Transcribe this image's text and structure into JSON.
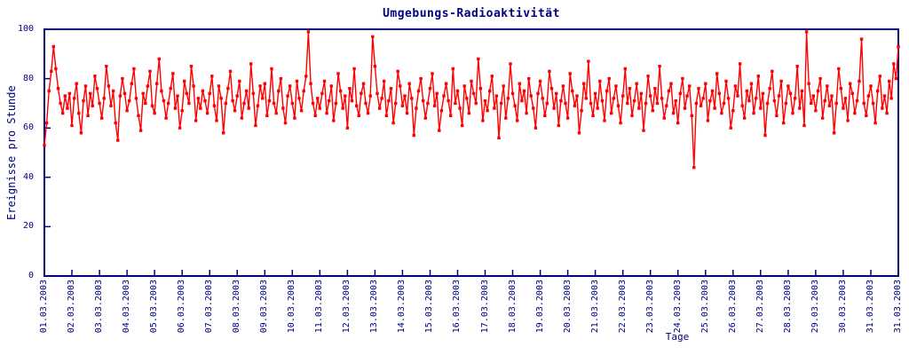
{
  "colors": {
    "series": "#ff0000",
    "axis": "#000080",
    "background": "#ffffff"
  },
  "chart_data": {
    "type": "line",
    "style": "linespoints with small filled square markers, noisy time series",
    "title": "Umgebungs-Radioaktivität",
    "xlabel": "Tage",
    "ylabel": "Ereignisse pro Stunde",
    "ylim": [
      0,
      100
    ],
    "yticks": [
      0,
      20,
      40,
      60,
      80,
      100
    ],
    "x_range": [
      "01.03.2003",
      "31.03.2003"
    ],
    "x_tick_labels": [
      "01.03.2003",
      "02.03.2003",
      "03.03.2003",
      "04.03.2003",
      "05.03.2003",
      "06.03.2003",
      "07.03.2003",
      "08.03.2003",
      "09.03.2003",
      "10.03.2003",
      "11.03.2003",
      "12.03.2003",
      "13.03.2003",
      "14.03.2003",
      "15.03.2003",
      "16.03.2003",
      "17.03.2003",
      "18.03.2003",
      "19.03.2003",
      "20.03.2003",
      "21.03.2003",
      "22.03.2003",
      "23.03.2003",
      "24.03.2003",
      "25.03.2003",
      "26.03.2003",
      "27.03.2003",
      "28.03.2003",
      "29.03.2003",
      "30.03.2003",
      "31.03.2003",
      "31.03.2003"
    ],
    "grid": false,
    "legend": "none",
    "values": [
      53,
      62,
      75,
      83,
      93,
      84,
      76,
      70,
      66,
      73,
      68,
      74,
      61,
      72,
      78,
      66,
      58,
      71,
      77,
      65,
      74,
      69,
      81,
      76,
      70,
      64,
      72,
      85,
      77,
      69,
      75,
      62,
      55,
      73,
      80,
      74,
      67,
      71,
      78,
      84,
      72,
      65,
      59,
      74,
      70,
      77,
      83,
      69,
      66,
      78,
      88,
      75,
      71,
      64,
      70,
      76,
      82,
      68,
      73,
      60,
      67,
      79,
      74,
      70,
      85,
      77,
      63,
      72,
      68,
      75,
      71,
      66,
      74,
      81,
      69,
      63,
      77,
      72,
      58,
      70,
      76,
      83,
      71,
      67,
      73,
      79,
      64,
      70,
      75,
      68,
      86,
      74,
      61,
      69,
      77,
      72,
      78,
      65,
      71,
      84,
      70,
      66,
      75,
      80,
      68,
      62,
      73,
      77,
      70,
      64,
      79,
      72,
      67,
      75,
      81,
      99,
      78,
      70,
      65,
      72,
      68,
      74,
      79,
      66,
      71,
      77,
      63,
      70,
      82,
      75,
      68,
      73,
      60,
      76,
      71,
      84,
      69,
      65,
      74,
      78,
      70,
      66,
      73,
      97,
      85,
      74,
      68,
      72,
      79,
      65,
      71,
      76,
      62,
      70,
      83,
      77,
      69,
      73,
      66,
      78,
      72,
      57,
      68,
      75,
      80,
      71,
      64,
      70,
      76,
      82,
      69,
      74,
      59,
      67,
      73,
      78,
      71,
      65,
      84,
      70,
      75,
      68,
      61,
      77,
      72,
      66,
      79,
      74,
      70,
      88,
      76,
      63,
      71,
      67,
      75,
      81,
      68,
      73,
      56,
      70,
      77,
      64,
      72,
      86,
      74,
      69,
      63,
      78,
      71,
      75,
      66,
      80,
      73,
      68,
      60,
      74,
      79,
      72,
      65,
      70,
      83,
      76,
      68,
      74,
      61,
      71,
      77,
      70,
      64,
      82,
      75,
      69,
      73,
      58,
      67,
      78,
      72,
      87,
      70,
      65,
      74,
      68,
      79,
      71,
      63,
      75,
      80,
      66,
      72,
      77,
      69,
      62,
      73,
      84,
      70,
      76,
      65,
      71,
      78,
      68,
      74,
      59,
      70,
      81,
      73,
      67,
      76,
      70,
      85,
      72,
      64,
      69,
      75,
      78,
      66,
      71,
      62,
      74,
      80,
      68,
      73,
      77,
      65,
      44,
      70,
      76,
      69,
      72,
      78,
      63,
      71,
      75,
      68,
      82,
      74,
      66,
      70,
      79,
      72,
      60,
      67,
      77,
      73,
      86,
      69,
      64,
      75,
      71,
      78,
      66,
      72,
      81,
      68,
      74,
      57,
      70,
      76,
      83,
      71,
      65,
      73,
      79,
      62,
      70,
      77,
      74,
      66,
      72,
      85,
      68,
      75,
      61,
      99,
      78,
      70,
      73,
      67,
      75,
      80,
      64,
      71,
      77,
      69,
      73,
      58,
      70,
      84,
      76,
      68,
      72,
      63,
      78,
      74,
      66,
      71,
      79,
      96,
      70,
      65,
      73,
      77,
      70,
      62,
      75,
      81,
      68,
      73,
      66,
      79,
      72,
      86,
      80,
      93
    ]
  }
}
